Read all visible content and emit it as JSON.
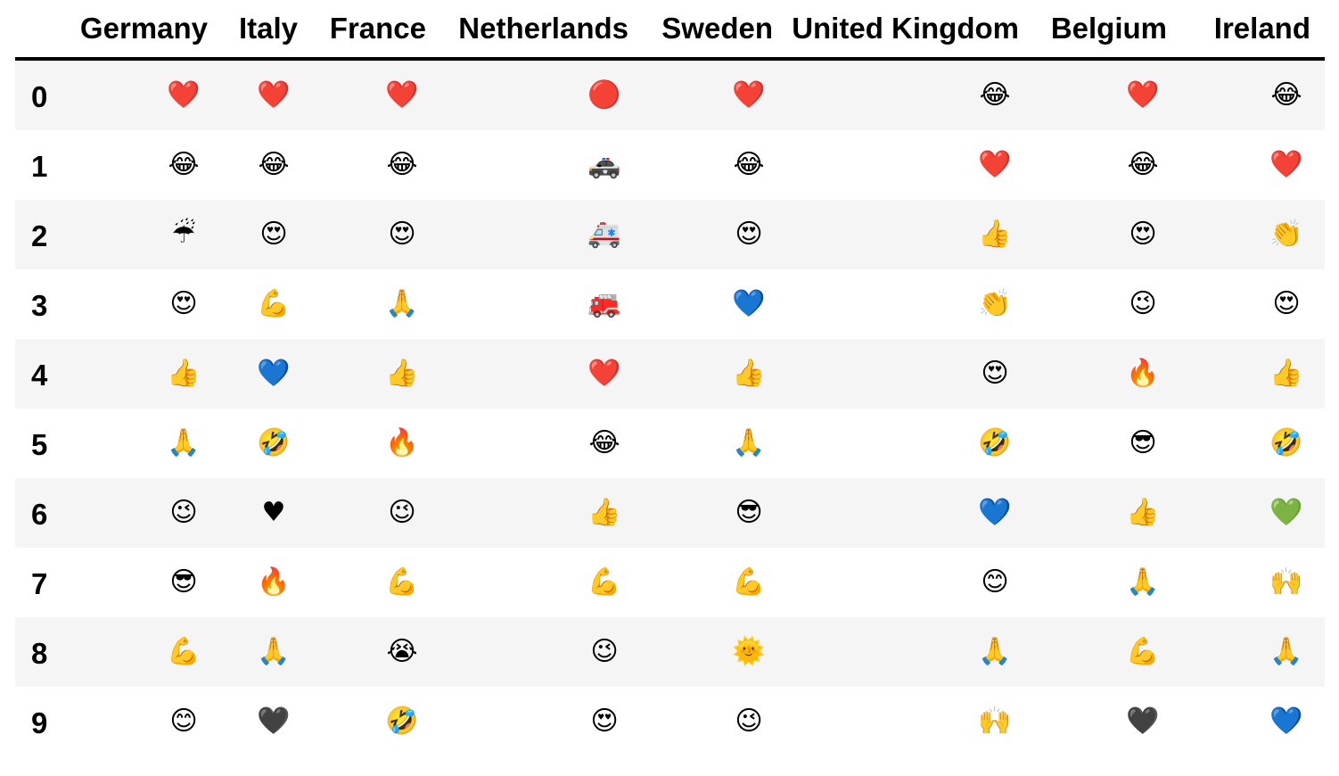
{
  "chart_data": {
    "type": "table",
    "columns": [
      "Germany",
      "Italy",
      "France",
      "Netherlands",
      "Sweden",
      "United Kingdom",
      "Belgium",
      "Ireland"
    ],
    "index": [
      "0",
      "1",
      "2",
      "3",
      "4",
      "5",
      "6",
      "7",
      "8",
      "9"
    ],
    "rows": [
      [
        "❤️",
        "❤️",
        "❤️",
        "🔴",
        "❤️",
        "😂",
        "❤️",
        "😂"
      ],
      [
        "😂",
        "😂",
        "😂",
        "🚓",
        "😂",
        "❤️",
        "😂",
        "❤️"
      ],
      [
        "☔",
        "😍",
        "😍",
        "🚑",
        "😍",
        "👍",
        "😍",
        "👏"
      ],
      [
        "😍",
        "💪",
        "🙏",
        "🚒",
        "💙",
        "👏",
        "😉",
        "😍"
      ],
      [
        "👍",
        "💙",
        "👍",
        "❤️",
        "👍",
        "😍",
        "🔥",
        "👍"
      ],
      [
        "🙏",
        "🤣",
        "🔥",
        "😂",
        "🙏",
        "🤣",
        "😎",
        "🤣"
      ],
      [
        "😉",
        "♥",
        "😉",
        "👍",
        "😎",
        "💙",
        "👍",
        "💚"
      ],
      [
        "😎",
        "🔥",
        "💪",
        "💪",
        "💪",
        "😊",
        "🙏",
        "🙌"
      ],
      [
        "💪",
        "🙏",
        "😭",
        "😉",
        "🌞",
        "🙏",
        "💪",
        "🙏"
      ],
      [
        "😊",
        "🖤",
        "🤣",
        "😍",
        "😉",
        "🙌",
        "🖤",
        "💙"
      ]
    ]
  }
}
